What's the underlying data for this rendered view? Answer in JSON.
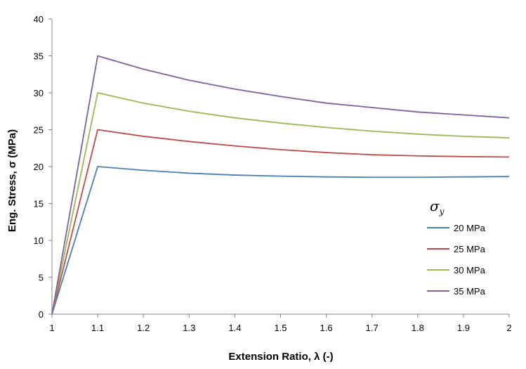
{
  "chart_data": {
    "type": "line",
    "xlabel": "Extension Ratio, λ (-)",
    "ylabel": "Eng. Stress, σ  (MPa)",
    "xlim": [
      1,
      2
    ],
    "ylim": [
      0,
      40
    ],
    "x_ticks": [
      "1",
      "1.1",
      "1.2",
      "1.3",
      "1.4",
      "1.5",
      "1.6",
      "1.7",
      "1.8",
      "1.9",
      "2"
    ],
    "y_ticks": [
      "0",
      "5",
      "10",
      "15",
      "20",
      "25",
      "30",
      "35",
      "40"
    ],
    "grid": false,
    "legend_position": "right",
    "legend_title": "σ",
    "legend_title_sub": "y",
    "series": [
      {
        "name": "20 MPa",
        "color": "#4a7ebb",
        "x": [
          1.0,
          1.1,
          1.2,
          1.3,
          1.4,
          1.5,
          1.6,
          1.7,
          1.8,
          1.9,
          2.0
        ],
        "y": [
          0,
          20.0,
          19.5,
          19.1,
          18.85,
          18.7,
          18.6,
          18.55,
          18.55,
          18.6,
          18.65
        ]
      },
      {
        "name": "25 MPa",
        "color": "#be4b48",
        "x": [
          1.0,
          1.1,
          1.2,
          1.3,
          1.4,
          1.5,
          1.6,
          1.7,
          1.8,
          1.9,
          2.0
        ],
        "y": [
          0,
          25.0,
          24.1,
          23.4,
          22.8,
          22.3,
          21.9,
          21.6,
          21.45,
          21.35,
          21.3
        ]
      },
      {
        "name": "30 MPa",
        "color": "#98b954",
        "x": [
          1.0,
          1.1,
          1.2,
          1.3,
          1.4,
          1.5,
          1.6,
          1.7,
          1.8,
          1.9,
          2.0
        ],
        "y": [
          0,
          30.0,
          28.6,
          27.5,
          26.6,
          25.9,
          25.3,
          24.8,
          24.4,
          24.1,
          23.9
        ]
      },
      {
        "name": "35 MPa",
        "color": "#7d60a0",
        "x": [
          1.0,
          1.1,
          1.2,
          1.3,
          1.4,
          1.5,
          1.6,
          1.7,
          1.8,
          1.9,
          2.0
        ],
        "y": [
          0,
          35.0,
          33.2,
          31.7,
          30.5,
          29.5,
          28.6,
          28.0,
          27.4,
          27.0,
          26.6
        ]
      }
    ]
  }
}
